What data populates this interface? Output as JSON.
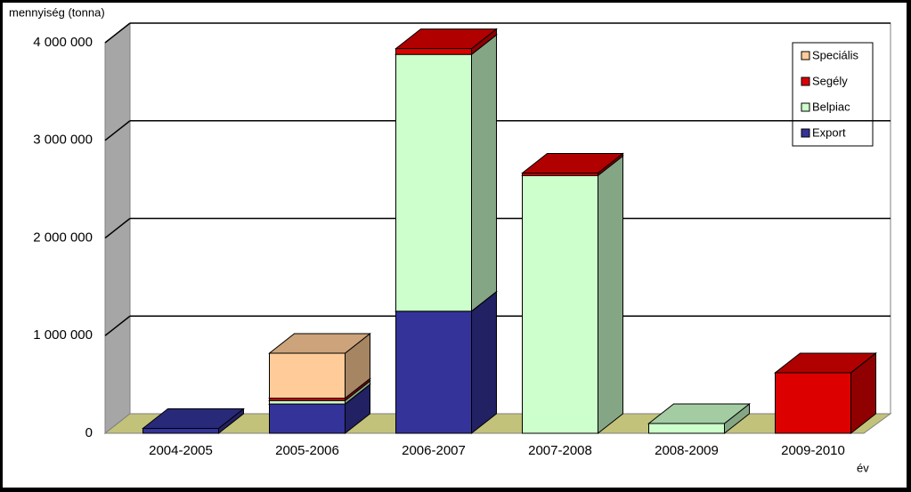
{
  "chart_data": {
    "type": "bar3d_stacked",
    "y_label": "mennyiség (tonna)",
    "x_label": "év",
    "categories": [
      "2004-2005",
      "2005-2006",
      "2006-2007",
      "2007-2008",
      "2008-2009",
      "2009-2010"
    ],
    "series": [
      {
        "name": "Export",
        "color": "#333399",
        "values": [
          50000,
          300000,
          1250000,
          0,
          0,
          0
        ]
      },
      {
        "name": "Belpiac",
        "color": "#ccffcc",
        "values": [
          0,
          35000,
          2630000,
          2640000,
          100000,
          0
        ]
      },
      {
        "name": "Segély",
        "color": "#dd0000",
        "values": [
          0,
          25000,
          60000,
          25000,
          0,
          620000
        ]
      },
      {
        "name": "Speciális",
        "color": "#ffcc99",
        "values": [
          0,
          460000,
          0,
          0,
          0,
          0
        ]
      }
    ],
    "ylim": [
      0,
      4000000
    ],
    "yticks": [
      0,
      {
        "value": 1000000,
        "label": "1 000 000"
      },
      {
        "value": 2000000,
        "label": "2 000 000"
      },
      {
        "value": 3000000,
        "label": "3 000 000"
      },
      {
        "value": 4000000,
        "label": "4 000 000"
      }
    ],
    "grid": true,
    "legend": "upper right"
  }
}
